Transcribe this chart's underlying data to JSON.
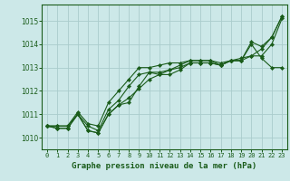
{
  "title": "Graphe pression niveau de la mer (hPa)",
  "background_color": "#cce8e8",
  "grid_color": "#aacccc",
  "line_color": "#1a5c1a",
  "xlim": [
    -0.5,
    23.5
  ],
  "ylim": [
    1009.5,
    1015.7
  ],
  "yticks": [
    1010,
    1011,
    1012,
    1013,
    1014,
    1015
  ],
  "xticks": [
    0,
    1,
    2,
    3,
    4,
    5,
    6,
    7,
    8,
    9,
    10,
    11,
    12,
    13,
    14,
    15,
    16,
    17,
    18,
    19,
    20,
    21,
    22,
    23
  ],
  "series": [
    [
      1010.5,
      1010.5,
      1010.5,
      1011.0,
      1010.3,
      1010.2,
      1011.0,
      1011.4,
      1011.5,
      1012.2,
      1012.8,
      1012.8,
      1012.9,
      1013.0,
      1013.2,
      1013.2,
      1013.2,
      1013.1,
      1013.3,
      1013.3,
      1014.1,
      1013.9,
      1014.3,
      1015.2
    ],
    [
      1010.5,
      1010.4,
      1010.4,
      1011.0,
      1010.3,
      1010.2,
      1011.0,
      1011.4,
      1011.7,
      1012.1,
      1012.5,
      1012.7,
      1012.9,
      1013.1,
      1013.3,
      1013.3,
      1013.3,
      1013.1,
      1013.3,
      1013.3,
      1014.0,
      1013.4,
      1013.0,
      1013.0
    ],
    [
      1010.5,
      1010.4,
      1010.4,
      1011.0,
      1010.5,
      1010.3,
      1011.2,
      1011.6,
      1012.2,
      1012.7,
      1012.8,
      1012.7,
      1012.7,
      1012.9,
      1013.2,
      1013.2,
      1013.2,
      1013.1,
      1013.3,
      1013.3,
      1013.5,
      1013.5,
      1014.0,
      1015.1
    ],
    [
      1010.5,
      1010.5,
      1010.5,
      1011.1,
      1010.6,
      1010.5,
      1011.5,
      1012.0,
      1012.5,
      1013.0,
      1013.0,
      1013.1,
      1013.2,
      1013.2,
      1013.3,
      1013.3,
      1013.3,
      1013.2,
      1013.3,
      1013.4,
      1013.5,
      1013.8,
      1014.3,
      1015.2
    ]
  ]
}
